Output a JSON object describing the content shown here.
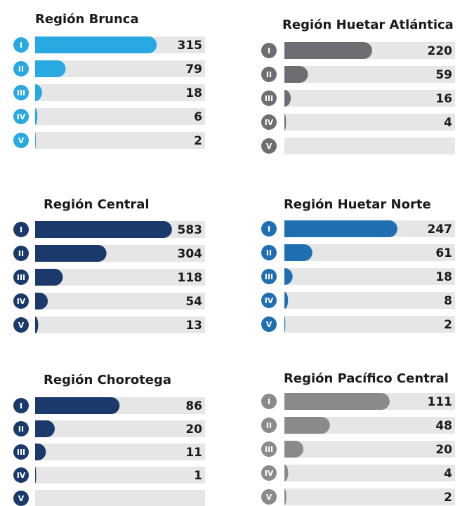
{
  "chart_data": [
    {
      "type": "bar",
      "title": "Región Brunca",
      "categories": [
        "I",
        "II",
        "III",
        "IV",
        "V"
      ],
      "values": [
        315,
        79,
        18,
        6,
        2
      ],
      "color": "#29a9e1",
      "xlim": [
        0,
        440
      ]
    },
    {
      "type": "bar",
      "title": "Región Huetar Atlántica",
      "categories": [
        "I",
        "II",
        "III",
        "IV",
        "V"
      ],
      "values": [
        220,
        59,
        16,
        4,
        null
      ],
      "color": "#6d6e71",
      "xlim": [
        0,
        428
      ]
    },
    {
      "type": "bar",
      "title": "Región Central",
      "categories": [
        "I",
        "II",
        "III",
        "IV",
        "V"
      ],
      "values": [
        583,
        304,
        118,
        54,
        13
      ],
      "color": "#1b3a6b",
      "xlim": [
        0,
        724
      ]
    },
    {
      "type": "bar",
      "title": "Región Huetar Norte",
      "categories": [
        "I",
        "II",
        "III",
        "IV",
        "V"
      ],
      "values": [
        247,
        61,
        18,
        8,
        2
      ],
      "color": "#1f6fb2",
      "xlim": [
        0,
        373
      ]
    },
    {
      "type": "bar",
      "title": "Región Chorotega",
      "categories": [
        "I",
        "II",
        "III",
        "IV",
        "V"
      ],
      "values": [
        86,
        20,
        11,
        1,
        null
      ],
      "color": "#1b3a6b",
      "xlim": [
        0,
        173
      ]
    },
    {
      "type": "bar",
      "title": "Región Pacífico Central",
      "categories": [
        "I",
        "II",
        "III",
        "IV",
        "V"
      ],
      "values": [
        111,
        48,
        20,
        4,
        2
      ],
      "color": "#8a8a8d",
      "xlim": [
        0,
        180
      ]
    }
  ]
}
